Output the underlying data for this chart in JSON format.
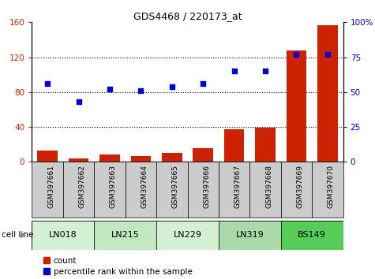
{
  "title": "GDS4468 / 220173_at",
  "samples": [
    "GSM397661",
    "GSM397662",
    "GSM397663",
    "GSM397664",
    "GSM397665",
    "GSM397666",
    "GSM397667",
    "GSM397668",
    "GSM397669",
    "GSM397670"
  ],
  "counts": [
    13,
    4,
    8,
    7,
    10,
    16,
    37,
    39,
    128,
    157
  ],
  "percentile_ranks": [
    56,
    43,
    52,
    51,
    54,
    56,
    65,
    65,
    77,
    77
  ],
  "cell_lines": [
    {
      "label": "LN018",
      "start": 0,
      "end": 2,
      "color": "#d4f0d4"
    },
    {
      "label": "LN215",
      "start": 2,
      "end": 4,
      "color": "#c2e8c2"
    },
    {
      "label": "LN229",
      "start": 4,
      "end": 6,
      "color": "#d4f0d4"
    },
    {
      "label": "LN319",
      "start": 6,
      "end": 8,
      "color": "#aadaaa"
    },
    {
      "label": "BS149",
      "start": 8,
      "end": 10,
      "color": "#55cc55"
    }
  ],
  "bar_color": "#cc2200",
  "dot_color": "#0000cc",
  "left_ylim": [
    0,
    160
  ],
  "right_ylim": [
    0,
    100
  ],
  "left_yticks": [
    0,
    40,
    80,
    120,
    160
  ],
  "right_yticks": [
    0,
    25,
    50,
    75,
    100
  ],
  "left_yticklabels": [
    "0",
    "40",
    "80",
    "120",
    "160"
  ],
  "right_yticklabels": [
    "0",
    "25",
    "50",
    "75",
    "100%"
  ],
  "dotted_lines": [
    40,
    80,
    120
  ],
  "legend_count_label": "count",
  "legend_pct_label": "percentile rank within the sample",
  "cell_line_label": "cell line",
  "sample_box_color": "#cccccc",
  "title_fontsize": 9,
  "axis_label_fontsize": 7.5,
  "tick_fontsize": 7.5,
  "cell_line_fontsize": 8,
  "legend_fontsize": 7.5
}
